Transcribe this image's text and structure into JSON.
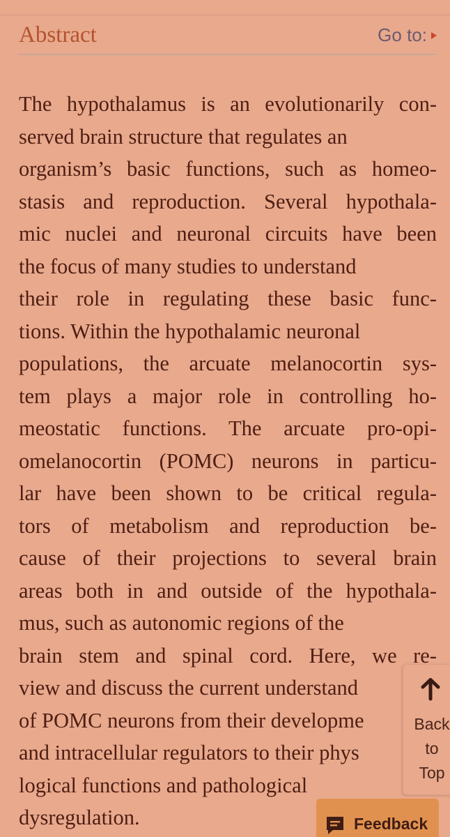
{
  "section": {
    "title": "Abstract",
    "goto_label": "Go to:"
  },
  "abstract": {
    "lines": [
      "The hypothalamus is an evolutionarily con-",
      "served brain structure that regulates an",
      "organism’s basic functions, such as homeo-",
      "stasis and reproduction. Several hypothala-",
      "mic nuclei and neuronal circuits have been",
      "the focus of many studies to understand",
      "their role in regulating these basic func-",
      "tions. Within the hypothalamic neuronal",
      "populations, the arcuate melanocortin sys-",
      "tem plays a major role in controlling ho-",
      "meostatic functions. The arcuate pro-opi-",
      "omelanocortin (POMC) neurons in particu-",
      "lar have been shown to be critical regula-",
      "tors of metabolism and reproduction be-",
      "cause of their projections to several brain",
      "areas both in and outside of the hypothala-",
      "mus, such as autonomic regions of the",
      "brain stem and spinal cord. Here, we re-",
      "view and discuss the current understand",
      "of POMC neurons from their developme",
      "and intracellular regulators to their phys",
      "logical functions and pathological",
      "dysregulation."
    ]
  },
  "back_to_top": {
    "icon": "arrow-up-icon",
    "line1": "Back",
    "line2": "to",
    "line3": "Top"
  },
  "feedback": {
    "icon": "feedback-icon",
    "label": "Feedback"
  },
  "colors": {
    "background": "#e8a98d",
    "heading": "#b5532f",
    "body_text": "#4e1e12",
    "goto_link": "#6e5a70",
    "feedback_button": "#e1914f"
  }
}
